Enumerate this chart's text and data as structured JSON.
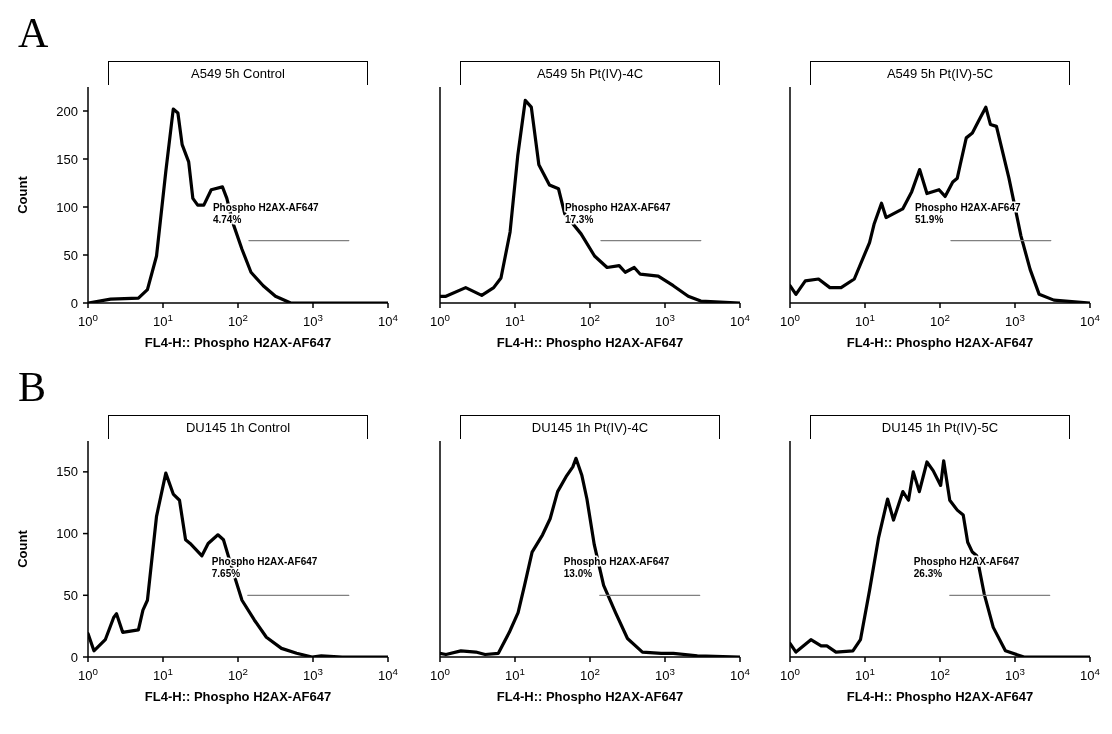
{
  "chart_data": [
    {
      "type": "line",
      "title": "A549 5h Control",
      "xlabel": "FL4-H:: Phospho H2AX-AF647",
      "ylabel": "Count",
      "log": "x",
      "xlim": [
        1,
        10000
      ],
      "xticks": [
        {
          "value": 1,
          "label": "10$^{0}$"
        },
        {
          "value": 10,
          "label": "10$^{1}$"
        },
        {
          "value": 100,
          "label": "10$^{2}$"
        },
        {
          "value": 1000,
          "label": "10$^{3}$"
        },
        {
          "value": 10000,
          "label": "10$^{4}$"
        }
      ],
      "ylim": [
        0,
        225
      ],
      "yticks": [
        0,
        50,
        100,
        150,
        200
      ],
      "series": [
        {
          "color": "#000000",
          "x": [
            1,
            2,
            4.7,
            6.2,
            8.2,
            10.9,
            13.7,
            15.8,
            18,
            22,
            25,
            29,
            35,
            44,
            62,
            71,
            85,
            113,
            149,
            217,
            316,
            504,
            10000
          ],
          "values": [
            0,
            4,
            5,
            14,
            49,
            137,
            202,
            198,
            165,
            147,
            109,
            102,
            102,
            118,
            121,
            109,
            84,
            56,
            32,
            18,
            7,
            0,
            0
          ]
        },
        {
          "color": "#808080",
          "x": [
            140,
            3000
          ],
          "values": [
            65,
            65
          ]
        }
      ],
      "annotations": [
        "Phospho H2AX-AF647\n4.74%",
        "A"
      ]
    },
    {
      "type": "line",
      "title": "A549 5h Pt(IV)-4C",
      "xlabel": "FL4-H:: Phospho H2AX-AF647",
      "log": "x",
      "tick_labels": "x",
      "xlim": [
        1,
        10000
      ],
      "xticks": [
        {
          "value": 1,
          "label": "10$^{0}$"
        },
        {
          "value": 10,
          "label": "10$^{1}$"
        },
        {
          "value": 100,
          "label": "10$^{2}$"
        },
        {
          "value": 1000,
          "label": "10$^{3}$"
        },
        {
          "value": 10000,
          "label": "10$^{4}$"
        }
      ],
      "ylim": [
        0,
        225
      ],
      "yticks": [
        0,
        50,
        100,
        150,
        200
      ],
      "series": [
        {
          "color": "#000000",
          "x": [
            1,
            1.2,
            2.2,
            3.6,
            5.2,
            6.5,
            8.6,
            10.9,
            13.7,
            16.5,
            20.8,
            28.8,
            38,
            46,
            76,
            115,
            169,
            245,
            295,
            389,
            468,
            813,
            1290,
            2040,
            3000,
            10000
          ],
          "values": [
            7,
            7,
            16,
            8,
            16,
            26,
            74,
            154,
            211,
            204,
            144,
            123,
            119,
            93,
            72,
            49,
            37,
            39,
            32,
            37,
            30,
            28,
            18,
            7,
            2,
            0
          ]
        },
        {
          "color": "#808080",
          "x": [
            140,
            3000
          ],
          "values": [
            65,
            65
          ]
        }
      ],
      "annotations": [
        "Phospho H2AX-AF647\n17.3%"
      ]
    },
    {
      "type": "line",
      "title": "A549 5h Pt(IV)-5C",
      "xlabel": "FL4-H:: Phospho H2AX-AF647",
      "log": "x",
      "tick_labels": "x",
      "xlim": [
        1,
        10000
      ],
      "xticks": [
        {
          "value": 1,
          "label": "10$^{0}$"
        },
        {
          "value": 10,
          "label": "10$^{1}$"
        },
        {
          "value": 100,
          "label": "10$^{2}$"
        },
        {
          "value": 1000,
          "label": "10$^{3}$"
        },
        {
          "value": 10000,
          "label": "10$^{4}$"
        }
      ],
      "ylim": [
        0,
        225
      ],
      "yticks": [
        0,
        50,
        100,
        150,
        200
      ],
      "series": [
        {
          "color": "#000000",
          "x": [
            1,
            1.2,
            1.6,
            2.4,
            3.4,
            4.8,
            7.2,
            11.5,
            13.2,
            16.6,
            19.1,
            31.8,
            42,
            53.5,
            67,
            97,
            117,
            148,
            170,
            186,
            224,
            270,
            324,
            408,
            470,
            566,
            830,
            1200,
            1590,
            2100,
            3300,
            10000
          ],
          "values": [
            18,
            9,
            23,
            25,
            16,
            16,
            25,
            63,
            82,
            104,
            89,
            98,
            116,
            139,
            114,
            118,
            111,
            126,
            130,
            144,
            172,
            177,
            189,
            204,
            186,
            184,
            130,
            70,
            35,
            9,
            3,
            0
          ]
        },
        {
          "color": "#808080",
          "x": [
            140,
            3000
          ],
          "values": [
            65,
            65
          ]
        }
      ],
      "annotations": [
        "Phospho H2AX-AF647\n51.9%"
      ]
    },
    {
      "type": "line",
      "title": "DU145 1h Control",
      "xlabel": "FL4-H:: Phospho H2AX-AF647",
      "ylabel": "Count",
      "log": "x",
      "xlim": [
        1,
        10000
      ],
      "xticks": [
        {
          "value": 1,
          "label": "10$^{0}$"
        },
        {
          "value": 10,
          "label": "10$^{1}$"
        },
        {
          "value": 100,
          "label": "10$^{2}$"
        },
        {
          "value": 1000,
          "label": "10$^{3}$"
        },
        {
          "value": 10000,
          "label": "10$^{4}$"
        }
      ],
      "ylim": [
        0,
        175
      ],
      "yticks": [
        0,
        50,
        100,
        150
      ],
      "series": [
        {
          "color": "#000000",
          "x": [
            1,
            1.2,
            1.7,
            2.2,
            2.4,
            2.9,
            4.7,
            5.4,
            6.2,
            8.2,
            10.9,
            13.7,
            16.6,
            20,
            23,
            33,
            40,
            54,
            64,
            85,
            113,
            165,
            239,
            380,
            605,
            970,
            1290,
            2450,
            10000
          ],
          "values": [
            19,
            5,
            14,
            32,
            35,
            20,
            22,
            38,
            46,
            114,
            149,
            132,
            127,
            95,
            92,
            82,
            92,
            99,
            95,
            70,
            46,
            30,
            16,
            7,
            3,
            0,
            1,
            0,
            0
          ]
        },
        {
          "color": "#808080",
          "x": [
            135,
            3000
          ],
          "values": [
            50,
            50
          ]
        }
      ],
      "annotations": [
        "Phospho H2AX-AF647\n7.65%",
        "B"
      ]
    },
    {
      "type": "line",
      "title": "DU145 1h Pt(IV)-4C",
      "xlabel": "FL4-H:: Phospho H2AX-AF647",
      "log": "x",
      "tick_labels": "x",
      "xlim": [
        1,
        10000
      ],
      "xticks": [
        {
          "value": 1,
          "label": "10$^{0}$"
        },
        {
          "value": 10,
          "label": "10$^{1}$"
        },
        {
          "value": 100,
          "label": "10$^{2}$"
        },
        {
          "value": 1000,
          "label": "10$^{3}$"
        },
        {
          "value": 10000,
          "label": "10$^{4}$"
        }
      ],
      "ylim": [
        0,
        175
      ],
      "yticks": [
        0,
        50,
        100,
        150
      ],
      "series": [
        {
          "color": "#000000",
          "x": [
            1,
            1.2,
            1.9,
            3,
            4,
            6,
            8.4,
            11,
            13.4,
            16.9,
            23.3,
            29.4,
            37,
            49,
            59,
            65,
            78,
            91,
            114,
            152,
            219,
            316,
            500,
            890,
            1290,
            2700,
            10000
          ],
          "values": [
            3,
            2,
            5,
            4,
            2,
            3,
            20,
            36,
            58,
            85,
            99,
            112,
            134,
            147,
            154,
            161,
            147,
            128,
            91,
            58,
            36,
            15,
            4,
            3,
            3,
            1,
            0
          ]
        },
        {
          "color": "#808080",
          "x": [
            135,
            2900
          ],
          "values": [
            50,
            50
          ]
        }
      ],
      "annotations": [
        "Phospho H2AX-AF647\n13.0%"
      ]
    },
    {
      "type": "line",
      "title": "DU145 1h Pt(IV)-5C",
      "xlabel": "FL4-H:: Phospho H2AX-AF647",
      "log": "x",
      "tick_labels": "x",
      "xlim": [
        1,
        10000
      ],
      "xticks": [
        {
          "value": 1,
          "label": "10$^{0}$"
        },
        {
          "value": 10,
          "label": "10$^{1}$"
        },
        {
          "value": 100,
          "label": "10$^{2}$"
        },
        {
          "value": 1000,
          "label": "10$^{3}$"
        },
        {
          "value": 10000,
          "label": "10$^{4}$"
        }
      ],
      "ylim": [
        0,
        175
      ],
      "yticks": [
        0,
        50,
        100,
        150
      ],
      "series": [
        {
          "color": "#000000",
          "x": [
            1,
            1.2,
            1.9,
            2.6,
            3.1,
            4.1,
            6.9,
            8.7,
            11.5,
            15.2,
            20,
            24,
            32,
            38,
            44,
            53,
            67,
            81,
            102,
            112,
            135,
            170,
            204,
            234,
            270,
            309,
            389,
            513,
            745,
            1320,
            10000
          ],
          "values": [
            11,
            4,
            14,
            9,
            9,
            4,
            5,
            14,
            54,
            97,
            128,
            111,
            134,
            127,
            150,
            134,
            158,
            151,
            139,
            159,
            127,
            119,
            115,
            93,
            85,
            82,
            51,
            24,
            5,
            0,
            0
          ]
        },
        {
          "color": "#808080",
          "x": [
            135,
            2900
          ],
          "values": [
            50,
            50
          ]
        }
      ],
      "annotations": [
        "Phospho H2AX-AF647\n26.3%"
      ]
    }
  ]
}
